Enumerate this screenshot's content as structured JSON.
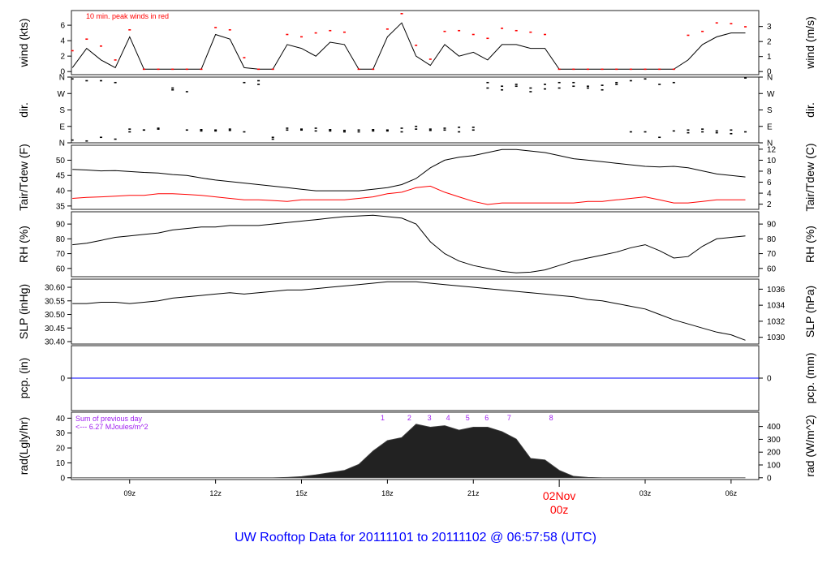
{
  "title": "UW Rooftop Data for 20111101  to  20111102 @ 06:57:58  (UTC)",
  "colors": {
    "title": "#0000ff",
    "peak": "#ff0000",
    "dewpoint": "#ff0000",
    "precip": "#0000ff",
    "rad_note": "#a020f0",
    "date_label": "#ff0000",
    "line": "#000000",
    "rad_fill": "#222222"
  },
  "chart_data": {
    "type": "line",
    "x_range": [
      "2011-11-01T06:58Z",
      "2011-11-02T06:58Z"
    ],
    "x_ticks": [
      {
        "time": "2011-11-01T09:00Z",
        "label": "09z"
      },
      {
        "time": "2011-11-01T12:00Z",
        "label": "12z"
      },
      {
        "time": "2011-11-01T15:00Z",
        "label": "15z"
      },
      {
        "time": "2011-11-01T18:00Z",
        "label": "18z"
      },
      {
        "time": "2011-11-01T21:00Z",
        "label": "21z"
      },
      {
        "time": "2011-11-02T00:00Z",
        "label": "00z",
        "date": "02Nov"
      },
      {
        "time": "2011-11-02T03:00Z",
        "label": "03z"
      },
      {
        "time": "2011-11-02T06:00Z",
        "label": "06z"
      }
    ],
    "times": [
      "2011-11-01T07:00Z",
      "2011-11-01T07:30Z",
      "2011-11-01T08:00Z",
      "2011-11-01T08:30Z",
      "2011-11-01T09:00Z",
      "2011-11-01T09:30Z",
      "2011-11-01T10:00Z",
      "2011-11-01T10:30Z",
      "2011-11-01T11:00Z",
      "2011-11-01T11:30Z",
      "2011-11-01T12:00Z",
      "2011-11-01T12:30Z",
      "2011-11-01T13:00Z",
      "2011-11-01T13:30Z",
      "2011-11-01T14:00Z",
      "2011-11-01T14:30Z",
      "2011-11-01T15:00Z",
      "2011-11-01T15:30Z",
      "2011-11-01T16:00Z",
      "2011-11-01T16:30Z",
      "2011-11-01T17:00Z",
      "2011-11-01T17:30Z",
      "2011-11-01T18:00Z",
      "2011-11-01T18:30Z",
      "2011-11-01T19:00Z",
      "2011-11-01T19:30Z",
      "2011-11-01T20:00Z",
      "2011-11-01T20:30Z",
      "2011-11-01T21:00Z",
      "2011-11-01T21:30Z",
      "2011-11-01T22:00Z",
      "2011-11-01T22:30Z",
      "2011-11-01T23:00Z",
      "2011-11-01T23:30Z",
      "2011-11-02T00:00Z",
      "2011-11-02T00:30Z",
      "2011-11-02T01:00Z",
      "2011-11-02T01:30Z",
      "2011-11-02T02:00Z",
      "2011-11-02T02:30Z",
      "2011-11-02T03:00Z",
      "2011-11-02T03:30Z",
      "2011-11-02T04:00Z",
      "2011-11-02T04:30Z",
      "2011-11-02T05:00Z",
      "2011-11-02T05:30Z",
      "2011-11-02T06:00Z",
      "2011-11-02T06:30Z"
    ],
    "panels": [
      {
        "id": "wind",
        "ylabel_left": "wind (kts)",
        "ylabel_right": "wind (m/s)",
        "ylim": [
          -0.4,
          7.9
        ],
        "yticks_left": [
          0,
          2,
          4,
          6
        ],
        "yticks_right": [
          0,
          1,
          2,
          3
        ],
        "annotation": "10 min. peak winds in red",
        "series": [
          {
            "values": [
              0.5,
              3.0,
              1.5,
              0.5,
              4.5,
              0.3,
              0.3,
              0.3,
              0.3,
              0.3,
              4.8,
              4.2,
              0.5,
              0.3,
              0.3,
              3.5,
              3.0,
              2.0,
              3.8,
              3.5,
              0.3,
              0.3,
              4.5,
              6.3,
              2.0,
              0.8,
              3.5,
              2.0,
              2.5,
              1.5,
              3.5,
              3.5,
              3.0,
              3.0,
              0.3,
              0.3,
              0.3,
              0.3,
              0.3,
              0.3,
              0.3,
              0.3,
              0.3,
              1.5,
              3.5,
              4.5,
              5.0,
              5.0
            ]
          },
          {
            "name": "10 min. peak winds",
            "style": "dash",
            "values": [
              2.7,
              4.2,
              3.3,
              1.5,
              5.4,
              0.3,
              0.3,
              0.3,
              0.3,
              0.3,
              5.7,
              5.4,
              1.8,
              0.3,
              0.3,
              4.8,
              4.5,
              5.0,
              5.3,
              5.1,
              0.3,
              0.3,
              5.5,
              7.5,
              3.4,
              1.6,
              5.2,
              5.3,
              4.8,
              4.3,
              5.6,
              5.3,
              5.1,
              4.8,
              0.3,
              0.3,
              0.3,
              0.3,
              0.3,
              0.3,
              0.3,
              0.3,
              0.3,
              4.7,
              5.2,
              6.3,
              6.2,
              5.8
            ]
          }
        ]
      },
      {
        "id": "dir",
        "ylabel_left": "dir.",
        "ylabel_right": "dir.",
        "ylim": [
          0,
          360
        ],
        "yticks_left": [
          {
            "v": 0,
            "label": "N"
          },
          {
            "v": 90,
            "label": "E"
          },
          {
            "v": 180,
            "label": "S"
          },
          {
            "v": 270,
            "label": "W"
          },
          {
            "v": 360,
            "label": "N"
          }
        ],
        "series": [
          {
            "style": "scatter",
            "values": [
              350,
              10,
              340,
              20,
              75,
              70,
              75,
              290,
              280,
              65,
              70,
              68,
              330,
              320,
              30,
              80,
              70,
              65,
              72,
              60,
              70,
              65,
              70,
              60,
              75,
              68,
              80,
              85,
              70,
              300,
              310,
              320,
              300,
              295,
              330,
              310,
              300,
              315,
              330,
              60,
              350,
              320,
              330,
              55,
              60,
              65,
              70,
              355
            ]
          },
          {
            "style": "scatter",
            "values": [
              15,
              340,
              30,
              330,
              60,
              70,
              80,
              300,
              70,
              72,
              65,
              75,
              60,
              340,
              20,
              70,
              75,
              80,
              65,
              68,
              60,
              72,
              65,
              80,
              90,
              75,
              70,
              60,
              85,
              330,
              290,
              310,
              280,
              320,
              300,
              330,
              310,
              290,
              320,
              340,
              60,
              30,
              65,
              70,
              75,
              55,
              50,
              60
            ]
          }
        ]
      },
      {
        "id": "tair",
        "ylabel_left": "Tair/Tdew (F)",
        "ylabel_right": "Tair/Tdew (C)",
        "ylim": [
          33.9,
          54.9
        ],
        "yticks_left": [
          35,
          40,
          45,
          50
        ],
        "yticks_right": [
          2,
          4,
          6,
          8,
          10,
          12
        ],
        "series": [
          {
            "name": "Tair",
            "values": [
              47,
              46.8,
              46.5,
              46.6,
              46.3,
              46,
              45.8,
              45.3,
              45,
              44.2,
              43.5,
              43,
              42.5,
              42,
              41.5,
              41,
              40.5,
              40,
              40,
              40,
              40,
              40.5,
              41,
              42,
              44,
              47.5,
              50,
              51,
              51.5,
              52.5,
              53.5,
              53.5,
              53,
              52.5,
              51.5,
              50.5,
              50,
              49.5,
              49,
              48.5,
              48,
              47.8,
              48,
              47.5,
              46.5,
              45.5,
              45,
              44.5
            ]
          },
          {
            "name": "Tdew",
            "values": [
              37.5,
              37.8,
              38,
              38.2,
              38.5,
              38.5,
              39,
              39,
              38.8,
              38.5,
              38,
              37.5,
              37,
              37,
              36.8,
              36.5,
              37,
              37,
              37,
              37,
              37.5,
              38,
              39,
              39.5,
              41,
              41.5,
              39.5,
              38,
              36.5,
              35.5,
              36,
              36,
              36,
              36,
              36,
              36,
              36.5,
              36.5,
              37,
              37.5,
              38,
              37,
              36,
              36,
              36.5,
              37,
              37,
              37
            ]
          }
        ]
      },
      {
        "id": "rh",
        "ylabel_left": "RH (%)",
        "ylabel_right": "RH (%)",
        "ylim": [
          54.4,
          98.3
        ],
        "yticks_left": [
          60,
          70,
          80,
          90
        ],
        "yticks_right": [
          60,
          70,
          80,
          90
        ],
        "series": [
          {
            "values": [
              76,
              77,
              79,
              81,
              82,
              83,
              84,
              86,
              87,
              88,
              88,
              89,
              89,
              89,
              90,
              91,
              92,
              93,
              94,
              95,
              95.5,
              96,
              95,
              94,
              90,
              78,
              70,
              65,
              62,
              60,
              58,
              57,
              57.5,
              59,
              62,
              65,
              67,
              69,
              71,
              74,
              76,
              72,
              67,
              68,
              75,
              80,
              81,
              82
            ]
          }
        ]
      },
      {
        "id": "slp",
        "ylabel_left": "SLP (inHg)",
        "ylabel_right": "SLP (hPa)",
        "ylim": [
          30.391,
          30.63
        ],
        "yticks_left": [
          30.4,
          30.45,
          30.5,
          30.55,
          30.6
        ],
        "yticks_right": [
          1030,
          1032,
          1034,
          1036
        ],
        "series": [
          {
            "values": [
              30.54,
              30.54,
              30.545,
              30.545,
              30.54,
              30.545,
              30.55,
              30.56,
              30.565,
              30.57,
              30.575,
              30.58,
              30.575,
              30.58,
              30.585,
              30.59,
              30.59,
              30.595,
              30.6,
              30.605,
              30.61,
              30.615,
              30.62,
              30.62,
              30.62,
              30.615,
              30.61,
              30.605,
              30.6,
              30.595,
              30.59,
              30.585,
              30.58,
              30.575,
              30.57,
              30.565,
              30.555,
              30.55,
              30.54,
              30.53,
              30.52,
              30.5,
              30.48,
              30.465,
              30.45,
              30.435,
              30.425,
              30.405
            ]
          }
        ]
      },
      {
        "id": "pcp",
        "ylabel_left": "pcp. (in)",
        "ylabel_right": "pcp. (mm)",
        "ylim": [
          -1,
          1
        ],
        "yticks_left": [
          0
        ],
        "yticks_right": [
          0
        ],
        "series": [
          {
            "values": [
              0,
              0,
              0,
              0,
              0,
              0,
              0,
              0,
              0,
              0,
              0,
              0,
              0,
              0,
              0,
              0,
              0,
              0,
              0,
              0,
              0,
              0,
              0,
              0,
              0,
              0,
              0,
              0,
              0,
              0,
              0,
              0,
              0,
              0,
              0,
              0,
              0,
              0,
              0,
              0,
              0,
              0,
              0,
              0,
              0,
              0,
              0,
              0
            ]
          }
        ]
      },
      {
        "id": "rad",
        "ylabel_left": "rad(Lgly/hr)",
        "ylabel_right": "rad (W/m^2)",
        "ylim": [
          -1.2,
          44
        ],
        "yticks_left": [
          0,
          10,
          20,
          30,
          40
        ],
        "yticks_right": [
          0,
          100,
          200,
          300,
          400
        ],
        "annotation_lines": [
          "Sum of previous day",
          "<--- 6.27 MJoules/m^2"
        ],
        "markers": [
          {
            "time": "2011-11-01T17:50Z",
            "label": "1"
          },
          {
            "time": "2011-11-01T18:46Z",
            "label": "2"
          },
          {
            "time": "2011-11-01T19:28Z",
            "label": "3"
          },
          {
            "time": "2011-11-01T20:07Z",
            "label": "4"
          },
          {
            "time": "2011-11-01T20:48Z",
            "label": "5"
          },
          {
            "time": "2011-11-01T21:28Z",
            "label": "6"
          },
          {
            "time": "2011-11-01T22:15Z",
            "label": "7"
          },
          {
            "time": "2011-11-01T23:43Z",
            "label": "8"
          }
        ],
        "series": [
          {
            "style": "area",
            "values": [
              0,
              0,
              0,
              0,
              0,
              0,
              0,
              0,
              0,
              0,
              0,
              0,
              0,
              0,
              0,
              0.3,
              0.8,
              2,
              3.5,
              5,
              9,
              18,
              25,
              27,
              36,
              34,
              35,
              32,
              34,
              34,
              31,
              26,
              13,
              12,
              5,
              1,
              0.3,
              0,
              0,
              0,
              0,
              0,
              0,
              0,
              0,
              0,
              0,
              0
            ]
          }
        ]
      }
    ]
  }
}
